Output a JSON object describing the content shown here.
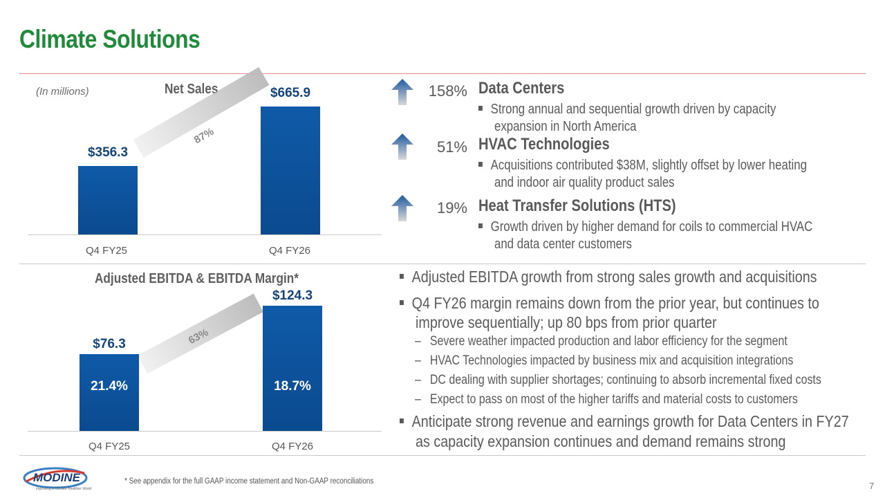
{
  "title": "Climate Solutions",
  "net_sales": {
    "units": "(In millions)",
    "title": "Net Sales",
    "growth": "87%",
    "chart_data": {
      "type": "bar",
      "title": "Net Sales",
      "categories": [
        "Q4 FY25",
        "Q4 FY26"
      ],
      "values": [
        356.3,
        665.9
      ],
      "value_labels": [
        "$356.3",
        "$665.9"
      ],
      "annotations": [
        "87%"
      ]
    }
  },
  "ebitda": {
    "title": "Adjusted EBITDA & EBITDA Margin*",
    "growth": "63%",
    "chart_data": {
      "type": "bar",
      "title": "Adjusted EBITDA & EBITDA Margin*",
      "categories": [
        "Q4 FY25",
        "Q4 FY26"
      ],
      "values": [
        76.3,
        124.3
      ],
      "value_labels": [
        "$76.3",
        "$124.3"
      ],
      "margins": [
        "21.4%",
        "18.7%"
      ],
      "annotations": [
        "63%"
      ]
    }
  },
  "segments": [
    {
      "pct": "158%",
      "name": "Data Centers",
      "bullet_line1": "Strong annual and sequential growth driven by capacity",
      "bullet_line2": "expansion in North America"
    },
    {
      "pct": "51%",
      "name": "HVAC Technologies",
      "bullet_line1": "Acquisitions contributed $38M, slightly offset by lower heating",
      "bullet_line2": "and indoor air quality product sales"
    },
    {
      "pct": "19%",
      "name": "Heat Transfer Solutions (HTS)",
      "bullet_line1": "Growth driven by higher demand for coils to commercial HVAC",
      "bullet_line2": "and data center customers"
    }
  ],
  "bullets": {
    "b1": "Adjusted EBITDA growth from strong sales growth and acquisitions",
    "b2_line1": "Q4 FY26 margin remains down from the prior year, but continues to",
    "b2_line2": "improve sequentially; up 80 bps from prior quarter",
    "subs": [
      "Severe weather impacted production and labor efficiency for the segment",
      "HVAC Technologies impacted by business mix and acquisition integrations",
      "DC dealing with supplier shortages; continuing to absorb incremental fixed costs",
      "Expect to pass on most of the higher tariffs and material costs to customers"
    ],
    "b3_line1": "Anticipate strong revenue and earnings growth for Data Centers in FY27",
    "b3_line2": "as capacity expansion continues and demand remains strong"
  },
  "logo": {
    "text": "MODINE",
    "tagline": "Improving a Climate Healthier World"
  },
  "footnote": "* See appendix for the full GAAP income statement and Non-GAAP reconciliations",
  "page_number": "7",
  "colors": {
    "title": "#1f8a3a",
    "bar": "#0f5aa8",
    "arrow": "#2f68a8"
  }
}
